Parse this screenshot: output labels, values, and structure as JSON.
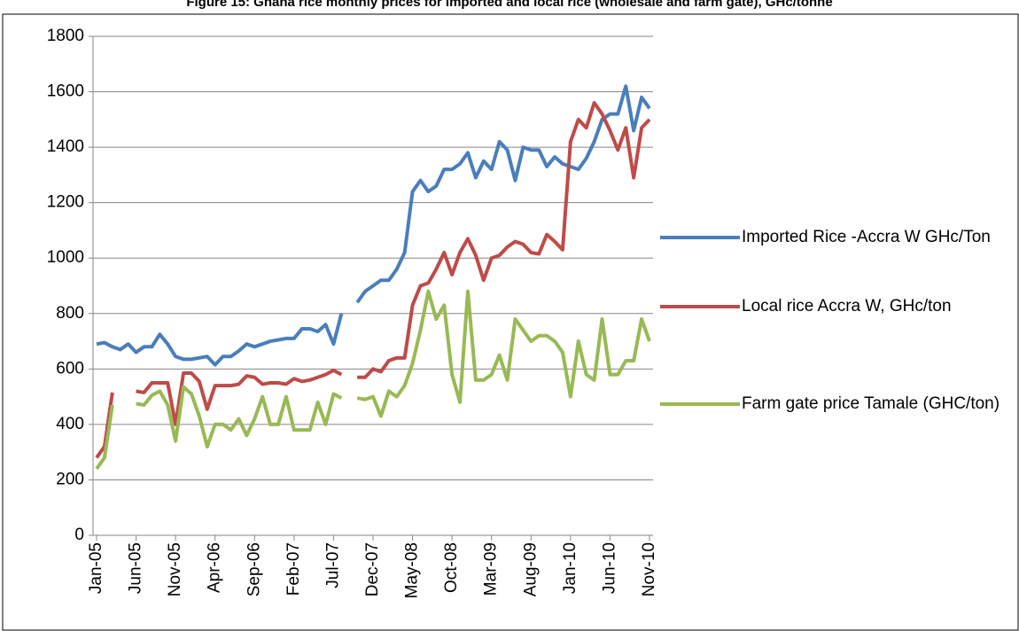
{
  "chart_data": {
    "type": "line",
    "title": "Figure 15: Ghana rice monthly prices for imported and local rice (wholesale and farm gate), GHc/tonne",
    "categories": [
      "Jan-05",
      null,
      null,
      null,
      null,
      "Jun-05",
      null,
      null,
      null,
      null,
      "Nov-05",
      null,
      null,
      null,
      null,
      "Apr-06",
      null,
      null,
      null,
      null,
      "Sep-06",
      null,
      null,
      null,
      null,
      "Feb-07",
      null,
      null,
      null,
      null,
      "Jul-07",
      null,
      null,
      null,
      null,
      "Dec-07",
      null,
      null,
      null,
      null,
      "May-08",
      null,
      null,
      null,
      null,
      "Oct-08",
      null,
      null,
      null,
      null,
      "Mar-09",
      null,
      null,
      null,
      null,
      "Aug-09",
      null,
      null,
      null,
      null,
      "Jan-10",
      null,
      null,
      null,
      null,
      "Jun-10",
      null,
      null,
      null,
      null,
      "Nov-10"
    ],
    "series": [
      {
        "name": "Imported Rice -Accra W GHc/Ton",
        "color": "#4a7ebb",
        "values": [
          690,
          695,
          680,
          670,
          690,
          660,
          680,
          680,
          725,
          690,
          645,
          635,
          635,
          640,
          645,
          615,
          645,
          645,
          665,
          690,
          680,
          690,
          700,
          705,
          710,
          710,
          745,
          745,
          735,
          760,
          690,
          800,
          null,
          840,
          880,
          900,
          920,
          920,
          960,
          1020,
          1240,
          1280,
          1240,
          1260,
          1320,
          1320,
          1340,
          1380,
          1290,
          1350,
          1320,
          1420,
          1390,
          1280,
          1400,
          1390,
          1390,
          1330,
          1365,
          1340,
          1330,
          1320,
          1360,
          1420,
          1500,
          1520,
          1520,
          1620,
          1460,
          1580,
          1540
        ]
      },
      {
        "name": "Local rice Accra W, GHc/ton",
        "color": "#be4b48",
        "values": [
          280,
          320,
          515,
          null,
          null,
          520,
          515,
          550,
          550,
          550,
          400,
          585,
          585,
          555,
          455,
          540,
          540,
          540,
          545,
          575,
          570,
          545,
          550,
          550,
          545,
          565,
          555,
          560,
          570,
          580,
          595,
          580,
          null,
          570,
          570,
          600,
          590,
          630,
          640,
          640,
          830,
          900,
          910,
          960,
          1020,
          940,
          1020,
          1070,
          1010,
          920,
          1000,
          1010,
          1040,
          1060,
          1050,
          1020,
          1015,
          1085,
          1060,
          1030,
          1420,
          1500,
          1470,
          1560,
          1520,
          1460,
          1390,
          1470,
          1290,
          1470,
          1500
        ]
      },
      {
        "name": "Farm gate price Tamale (GHC/ton)",
        "color": "#98b954",
        "values": [
          240,
          280,
          470,
          null,
          null,
          475,
          470,
          505,
          520,
          470,
          340,
          535,
          510,
          430,
          320,
          400,
          400,
          380,
          420,
          360,
          420,
          500,
          400,
          400,
          500,
          380,
          380,
          380,
          480,
          400,
          510,
          495,
          null,
          495,
          490,
          500,
          430,
          520,
          500,
          540,
          620,
          740,
          880,
          780,
          830,
          580,
          480,
          880,
          560,
          560,
          580,
          650,
          560,
          780,
          740,
          700,
          720,
          720,
          700,
          660,
          500,
          700,
          580,
          560,
          780,
          580,
          580,
          630,
          630,
          780,
          700
        ]
      }
    ],
    "ylim": [
      0,
      1800
    ],
    "yticks": [
      0,
      200,
      400,
      600,
      800,
      1000,
      1200,
      1400,
      1600,
      1800
    ],
    "grid": true,
    "legend": "right"
  }
}
